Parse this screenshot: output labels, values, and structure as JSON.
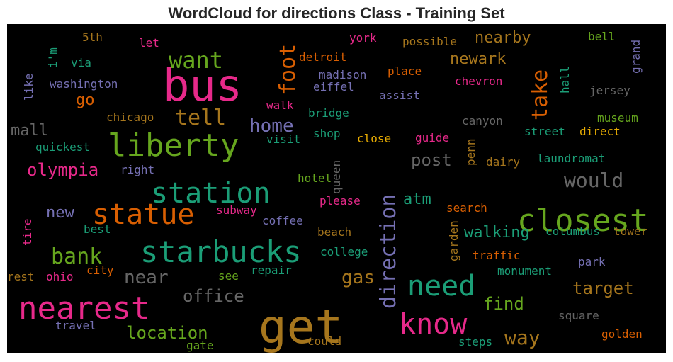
{
  "title": "WordCloud for directions Class - Training Set",
  "colors": {
    "background": "#000000",
    "green": "#1b9e77",
    "orange": "#d95f02",
    "purple": "#7570b3",
    "pink": "#e7298a",
    "lime": "#66a61e",
    "yellow": "#e6ab02",
    "brown": "#a6761d",
    "gray": "#666666"
  },
  "words": [
    {
      "text": "bus",
      "color": "pink"
    },
    {
      "text": "get",
      "color": "brown"
    },
    {
      "text": "closest",
      "color": "lime"
    },
    {
      "text": "starbucks",
      "color": "green"
    },
    {
      "text": "liberty",
      "color": "lime"
    },
    {
      "text": "nearest",
      "color": "pink"
    },
    {
      "text": "station",
      "color": "green"
    },
    {
      "text": "statue",
      "color": "orange"
    },
    {
      "text": "know",
      "color": "pink"
    },
    {
      "text": "need",
      "color": "green"
    },
    {
      "text": "direction",
      "color": "purple"
    },
    {
      "text": "foot",
      "color": "orange"
    },
    {
      "text": "take",
      "color": "orange"
    },
    {
      "text": "want",
      "color": "lime"
    },
    {
      "text": "tell",
      "color": "brown"
    },
    {
      "text": "bank",
      "color": "lime"
    },
    {
      "text": "would",
      "color": "gray"
    },
    {
      "text": "olympia",
      "color": "pink"
    },
    {
      "text": "home",
      "color": "purple"
    },
    {
      "text": "location",
      "color": "lime"
    },
    {
      "text": "way",
      "color": "brown"
    },
    {
      "text": "near",
      "color": "gray"
    },
    {
      "text": "office",
      "color": "gray"
    },
    {
      "text": "post",
      "color": "gray"
    },
    {
      "text": "gas",
      "color": "brown"
    },
    {
      "text": "target",
      "color": "brown"
    },
    {
      "text": "walking",
      "color": "green"
    },
    {
      "text": "find",
      "color": "lime"
    },
    {
      "text": "nearby",
      "color": "brown"
    },
    {
      "text": "newark",
      "color": "brown"
    },
    {
      "text": "mall",
      "color": "gray"
    },
    {
      "text": "new",
      "color": "purple"
    },
    {
      "text": "atm",
      "color": "green"
    },
    {
      "text": "go",
      "color": "orange"
    },
    {
      "text": "5th",
      "color": "brown"
    },
    {
      "text": "let",
      "color": "pink"
    },
    {
      "text": "i'm",
      "color": "green"
    },
    {
      "text": "via",
      "color": "green"
    },
    {
      "text": "washington",
      "color": "purple"
    },
    {
      "text": "like",
      "color": "purple"
    },
    {
      "text": "chicago",
      "color": "brown"
    },
    {
      "text": "quickest",
      "color": "green"
    },
    {
      "text": "right",
      "color": "purple"
    },
    {
      "text": "detroit",
      "color": "orange"
    },
    {
      "text": "madison",
      "color": "purple"
    },
    {
      "text": "eiffel",
      "color": "purple"
    },
    {
      "text": "york",
      "color": "pink"
    },
    {
      "text": "possible",
      "color": "brown"
    },
    {
      "text": "place",
      "color": "orange"
    },
    {
      "text": "assist",
      "color": "purple"
    },
    {
      "text": "chevron",
      "color": "pink"
    },
    {
      "text": "bell",
      "color": "lime"
    },
    {
      "text": "grand",
      "color": "purple"
    },
    {
      "text": "hall",
      "color": "green"
    },
    {
      "text": "jersey",
      "color": "gray"
    },
    {
      "text": "walk",
      "color": "pink"
    },
    {
      "text": "bridge",
      "color": "green"
    },
    {
      "text": "shop",
      "color": "green"
    },
    {
      "text": "visit",
      "color": "green"
    },
    {
      "text": "close",
      "color": "yellow"
    },
    {
      "text": "guide",
      "color": "pink"
    },
    {
      "text": "canyon",
      "color": "gray"
    },
    {
      "text": "museum",
      "color": "lime"
    },
    {
      "text": "street",
      "color": "green"
    },
    {
      "text": "direct",
      "color": "yellow"
    },
    {
      "text": "penn",
      "color": "brown"
    },
    {
      "text": "dairy",
      "color": "brown"
    },
    {
      "text": "laundromat",
      "color": "green"
    },
    {
      "text": "queen",
      "color": "gray"
    },
    {
      "text": "hotel",
      "color": "lime"
    },
    {
      "text": "please",
      "color": "pink"
    },
    {
      "text": "subway",
      "color": "pink"
    },
    {
      "text": "coffee",
      "color": "purple"
    },
    {
      "text": "search",
      "color": "orange"
    },
    {
      "text": "tire",
      "color": "pink"
    },
    {
      "text": "best",
      "color": "green"
    },
    {
      "text": "beach",
      "color": "brown"
    },
    {
      "text": "garden",
      "color": "brown"
    },
    {
      "text": "columbus",
      "color": "green"
    },
    {
      "text": "tower",
      "color": "brown"
    },
    {
      "text": "college",
      "color": "green"
    },
    {
      "text": "traffic",
      "color": "orange"
    },
    {
      "text": "park",
      "color": "purple"
    },
    {
      "text": "rest",
      "color": "brown"
    },
    {
      "text": "ohio",
      "color": "pink"
    },
    {
      "text": "city",
      "color": "orange"
    },
    {
      "text": "see",
      "color": "lime"
    },
    {
      "text": "repair",
      "color": "green"
    },
    {
      "text": "monument",
      "color": "green"
    },
    {
      "text": "square",
      "color": "gray"
    },
    {
      "text": "travel",
      "color": "purple"
    },
    {
      "text": "gate",
      "color": "lime"
    },
    {
      "text": "could",
      "color": "brown"
    },
    {
      "text": "steps",
      "color": "green"
    },
    {
      "text": "golden",
      "color": "orange"
    }
  ]
}
